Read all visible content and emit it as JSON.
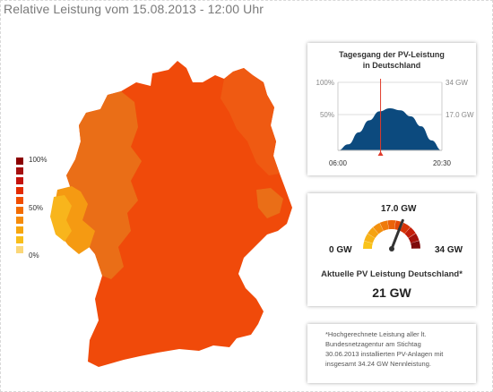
{
  "header": {
    "title": "Relative Leistung vom 15.08.2013 - 12:00 Uhr"
  },
  "legend": {
    "labels": {
      "top": "100%",
      "mid": "50%",
      "bottom": "0%"
    },
    "colors": [
      "#8b0000",
      "#a50f0f",
      "#c4120c",
      "#e32b00",
      "#f04d00",
      "#f26c00",
      "#f58b0a",
      "#f6a60e",
      "#f8bd1a",
      "#fbd778"
    ]
  },
  "map": {
    "colors": {
      "main": "#f04a0a",
      "east": "#ef5a12",
      "west": "#ea6e17",
      "rhine": "#f59a12",
      "lowest": "#f8b51c"
    }
  },
  "daily_chart": {
    "title_line1": "Tagesgang der PV-Leistung",
    "title_line2": "in Deutschland",
    "fill_color": "#0c4a7e",
    "marker_color": "#e03a2a",
    "current_fraction": 0.41
  },
  "chart_data": {
    "type": "area",
    "title": "Tagesgang der PV-Leistung in Deutschland",
    "x_start_label": "06:00",
    "x_end_label": "20:30",
    "y_left_ticks": [
      "100%",
      "50%"
    ],
    "y_right_ticks": [
      "34 GW",
      "17.0 GW"
    ],
    "ylim": [
      0,
      34
    ],
    "x": [
      0,
      0.1,
      0.2,
      0.3,
      0.4,
      0.5,
      0.6,
      0.7,
      0.8,
      0.9,
      1.0
    ],
    "series": [
      {
        "values": [
          0,
          3,
          9,
          15,
          19.5,
          21,
          20,
          17,
          12,
          5,
          0
        ]
      }
    ]
  },
  "gauge": {
    "top_label": "17.0 GW",
    "min_label": "0 GW",
    "max_label": "34 GW",
    "caption": "Aktuelle PV Leistung Deutschland*",
    "value_text": "21 GW",
    "value": 21,
    "max": 34
  },
  "footnote": {
    "lines": [
      "*Hochgerechnete Leistung aller lt.",
      "Bundesnetzagentur am Stichtag",
      "30.06.2013 installierten PV-Anlagen mit",
      "insgesamt 34.24 GW Nennleistung."
    ]
  }
}
